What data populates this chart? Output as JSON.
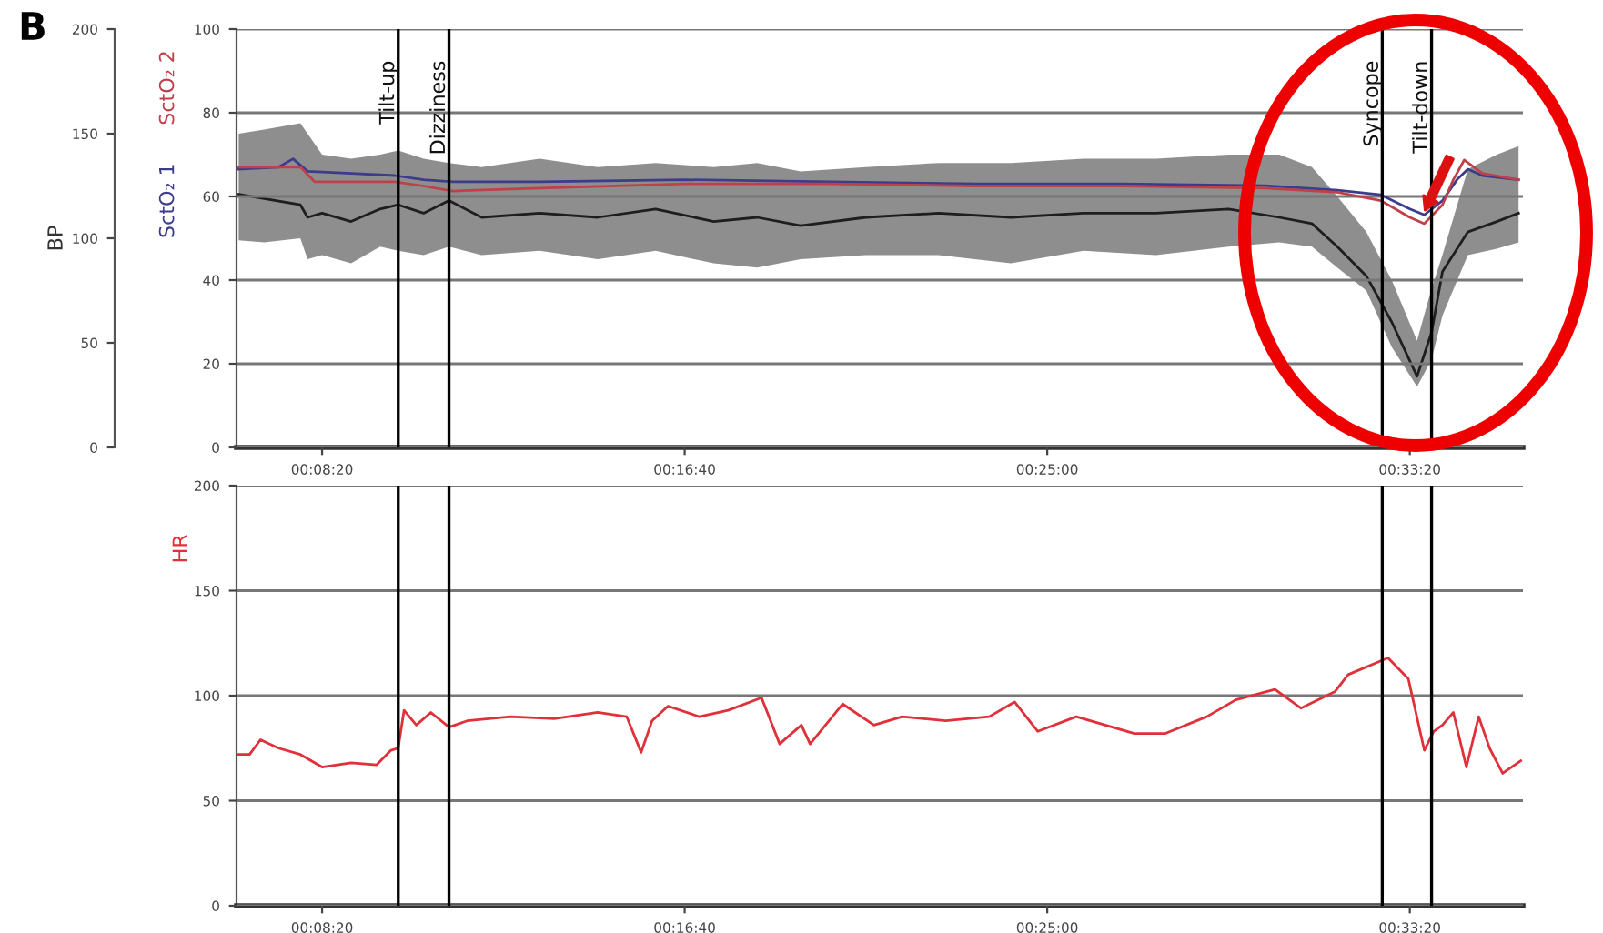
{
  "chart_data": [
    {
      "type": "line",
      "annotations": [
        "B"
      ],
      "y2label": "BP",
      "xlim": [
        382,
        2156
      ],
      "xticks": [
        {
          "value": 500,
          "label": "00:08:20"
        },
        {
          "value": 1000,
          "label": "00:16:40"
        },
        {
          "value": 1500,
          "label": "00:25:00"
        },
        {
          "value": 2000,
          "label": "00:33:20"
        }
      ],
      "ylim": [
        0,
        100
      ],
      "yticks": [
        0,
        20,
        40,
        60,
        80,
        100
      ],
      "y2lim": [
        0,
        200
      ],
      "y2ticks": [
        0,
        50,
        100,
        150,
        200
      ],
      "grid": "y",
      "ref_lines": [
        {
          "axis": "x",
          "value": 605,
          "label": "Tilt-up",
          "color": "#000000"
        },
        {
          "axis": "x",
          "value": 675,
          "label": "Dizziness",
          "color": "#000000"
        },
        {
          "axis": "x",
          "value": 1962,
          "label": "Syncope",
          "color": "#000000"
        },
        {
          "axis": "x",
          "value": 2030,
          "label": "Tilt-down",
          "color": "#000000"
        }
      ],
      "series": [
        {
          "axis": "y2",
          "color": "#1e1e1e",
          "x": [
            385,
            420,
            470,
            480,
            500,
            540,
            580,
            605,
            640,
            675,
            720,
            800,
            880,
            960,
            1040,
            1100,
            1160,
            1250,
            1350,
            1450,
            1550,
            1650,
            1750,
            1820,
            1865,
            1900,
            1940,
            1975,
            2010,
            2030,
            2045,
            2080,
            2120,
            2150
          ],
          "values": [
            121,
            119,
            116,
            110,
            112,
            108,
            114,
            116,
            112,
            118,
            110,
            112,
            110,
            114,
            108,
            110,
            106,
            110,
            112,
            110,
            112,
            112,
            114,
            110,
            107,
            96,
            82,
            60,
            34,
            55,
            84,
            103,
            108,
            112
          ],
          "lower": [
            99,
            98,
            100,
            90,
            92,
            88,
            96,
            94,
            92,
            96,
            92,
            94,
            90,
            94,
            88,
            86,
            90,
            92,
            92,
            88,
            94,
            92,
            96,
            98,
            96,
            86,
            75,
            48,
            29,
            42,
            63,
            92,
            95,
            98
          ],
          "upper": [
            150,
            152,
            155,
            150,
            140,
            138,
            140,
            142,
            138,
            136,
            134,
            138,
            134,
            136,
            134,
            136,
            132,
            134,
            136,
            136,
            138,
            138,
            140,
            140,
            134,
            120,
            103,
            80,
            51,
            76,
            92,
            133,
            140,
            144
          ]
        },
        {
          "name": "SctO₂ 1",
          "color": "#3c3c8c",
          "x": [
            385,
            440,
            460,
            480,
            540,
            600,
            640,
            680,
            800,
            1000,
            1200,
            1400,
            1600,
            1800,
            1900,
            1960,
            2000,
            2020,
            2045,
            2065,
            2080,
            2100,
            2150
          ],
          "values": [
            66.5,
            67,
            69,
            66,
            65.5,
            65,
            64,
            63.5,
            63.5,
            64,
            63.5,
            63,
            63,
            62.6,
            61.5,
            60.4,
            57,
            55.6,
            59,
            64,
            66.5,
            65,
            64
          ]
        },
        {
          "name": "SctO₂ 2",
          "color": "#c0404a",
          "x": [
            385,
            470,
            490,
            600,
            640,
            680,
            800,
            1000,
            1200,
            1400,
            1600,
            1800,
            1900,
            1960,
            2000,
            2020,
            2045,
            2060,
            2075,
            2100,
            2150
          ],
          "values": [
            67,
            67,
            63.5,
            63.5,
            62.5,
            61.3,
            62,
            63,
            63,
            62.5,
            62.5,
            62,
            61,
            59,
            55,
            53.5,
            58,
            64,
            68.7,
            65.5,
            64
          ]
        }
      ]
    },
    {
      "type": "line",
      "ylabel": "HR",
      "xlim": [
        382,
        2156
      ],
      "xticks": [
        {
          "value": 500,
          "label": "00:08:20"
        },
        {
          "value": 1000,
          "label": "00:16:40"
        },
        {
          "value": 1500,
          "label": "00:25:00"
        },
        {
          "value": 2000,
          "label": "00:33:20"
        }
      ],
      "ylim": [
        0,
        200
      ],
      "yticks": [
        0,
        50,
        100,
        150,
        200
      ],
      "grid": "y",
      "ref_lines": [
        {
          "axis": "x",
          "value": 605,
          "color": "#000000"
        },
        {
          "axis": "x",
          "value": 675,
          "color": "#000000"
        },
        {
          "axis": "x",
          "value": 1962,
          "color": "#000000"
        },
        {
          "axis": "x",
          "value": 2030,
          "color": "#000000"
        }
      ],
      "series": [
        {
          "color": "#e0303a",
          "x": [
            385,
            400,
            415,
            440,
            470,
            500,
            540,
            575,
            595,
            605,
            613,
            630,
            650,
            675,
            700,
            760,
            820,
            880,
            920,
            940,
            955,
            977,
            1020,
            1060,
            1106,
            1131,
            1161,
            1173,
            1218,
            1261,
            1300,
            1360,
            1420,
            1455,
            1487,
            1540,
            1620,
            1663,
            1720,
            1760,
            1814,
            1850,
            1897,
            1915,
            1970,
            1998,
            2020,
            2033,
            2045,
            2060,
            2078,
            2095,
            2110,
            2128,
            2153
          ],
          "values": [
            72,
            72,
            79,
            75,
            72,
            66,
            68,
            67,
            74,
            75,
            93,
            86,
            92,
            85,
            88,
            90,
            89,
            92,
            90,
            73,
            88,
            95,
            90,
            93,
            99,
            77,
            86,
            77,
            96,
            86,
            90,
            88,
            90,
            97,
            83,
            90,
            82,
            82,
            90,
            98,
            103,
            94,
            102,
            110,
            118,
            108,
            74,
            83,
            86,
            92,
            66,
            90,
            75,
            63,
            69
          ]
        }
      ]
    }
  ]
}
